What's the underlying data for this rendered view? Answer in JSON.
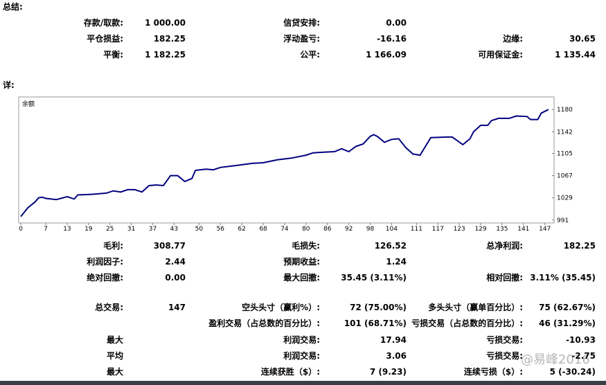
{
  "summary": {
    "title": "总结:",
    "rows": [
      [
        {
          "label": "存款/取款:",
          "value": "1 000.00"
        },
        {
          "label": "信贷安排:",
          "value": "0.00"
        }
      ],
      [
        {
          "label": "平仓损益:",
          "value": "182.25"
        },
        {
          "label": "浮动盈亏:",
          "value": "-16.16"
        },
        {
          "label": "边缘:",
          "value": "30.65"
        }
      ],
      [
        {
          "label": "平衡:",
          "value": "1 182.25"
        },
        {
          "label": "公平:",
          "value": "1 166.09"
        },
        {
          "label": "可用保证金:",
          "value": "1 135.44"
        }
      ]
    ]
  },
  "details": {
    "title": "详:",
    "rows": [
      [
        {
          "label": "毛利:",
          "value": "308.77"
        },
        {
          "label": "毛损失:",
          "value": "126.52"
        },
        {
          "label": "总净利润:",
          "value": "182.25"
        }
      ],
      [
        {
          "label": "利润因子:",
          "value": "2.44"
        },
        {
          "label": "预期收益:",
          "value": "1.24"
        }
      ],
      [
        {
          "label": "绝对回撤:",
          "value": "0.00"
        },
        {
          "label": "最大回撤:",
          "value": "35.45 (3.11%)"
        },
        {
          "label": "相对回撤:",
          "value": "3.11% (35.45)"
        }
      ],
      [
        {
          "label": "总交易:",
          "value": "147"
        },
        {
          "label": "空头头寸（赢利%）:",
          "value": "72 (75.00%)"
        },
        {
          "label": "多头头寸（赢单百分比）:",
          "value": "75 (62.67%)"
        }
      ],
      [
        null,
        {
          "label": "盈利交易（占总数的百分比）:",
          "value": "101 (68.71%)"
        },
        {
          "label": "亏损交易（占总数的百分比）:",
          "value": "46 (31.29%)"
        }
      ],
      [
        {
          "label": "最大"
        },
        {
          "label": "利润交易:",
          "value": "17.94"
        },
        {
          "label": "亏损交易:",
          "value": "-10.93"
        }
      ],
      [
        {
          "label": "平均"
        },
        {
          "label": "利润交易:",
          "value": "3.06"
        },
        {
          "label": "亏损交易:",
          "value": "-2.75"
        }
      ],
      [
        {
          "label": "最大"
        },
        {
          "label": "连续获胜（$）:",
          "value": "7 (9.23)"
        },
        {
          "label": "连续亏损（$）:",
          "value": "5 (-30.24)"
        }
      ]
    ]
  },
  "chart_data": {
    "type": "line",
    "label": "余额",
    "color": "#000080",
    "grid": false,
    "x": [
      0,
      2,
      4,
      5,
      6,
      7,
      10,
      13,
      15,
      16,
      20,
      22,
      24,
      26,
      28,
      30,
      32,
      34,
      36,
      38,
      40,
      42,
      44,
      46,
      48,
      49,
      52,
      54,
      56,
      60,
      65,
      68,
      72,
      76,
      80,
      82,
      85,
      88,
      90,
      92,
      94,
      96,
      98,
      99,
      100,
      102,
      104,
      106,
      108,
      110,
      112,
      115,
      120,
      121,
      124,
      126,
      127,
      129,
      131,
      132,
      134,
      137,
      139,
      142,
      143,
      145,
      146,
      148
    ],
    "values": [
      997,
      1012,
      1022,
      1029,
      1030,
      1028,
      1026,
      1031,
      1027,
      1034,
      1035,
      1036,
      1037,
      1041,
      1039,
      1043,
      1043,
      1039,
      1050,
      1051,
      1050,
      1067,
      1067,
      1057,
      1062,
      1076,
      1078,
      1077,
      1081,
      1084,
      1088,
      1089,
      1094,
      1097,
      1102,
      1106,
      1107,
      1108,
      1113,
      1108,
      1117,
      1121,
      1134,
      1137,
      1134,
      1124,
      1129,
      1130,
      1115,
      1104,
      1102,
      1132,
      1133,
      1133,
      1120,
      1130,
      1142,
      1153,
      1153,
      1161,
      1165,
      1165,
      1169,
      1168,
      1163,
      1163,
      1174,
      1180
    ],
    "xlim": [
      0,
      149
    ],
    "ylim": [
      986,
      1198
    ],
    "xticks": [
      0,
      7,
      13,
      19,
      25,
      31,
      37,
      43,
      50,
      56,
      62,
      68,
      74,
      80,
      86,
      92,
      98,
      104,
      111,
      117,
      123,
      129,
      135,
      141,
      147
    ],
    "yticks": [
      991,
      1029,
      1067,
      1105,
      1142,
      1180
    ]
  },
  "watermark": "@易峰2016"
}
